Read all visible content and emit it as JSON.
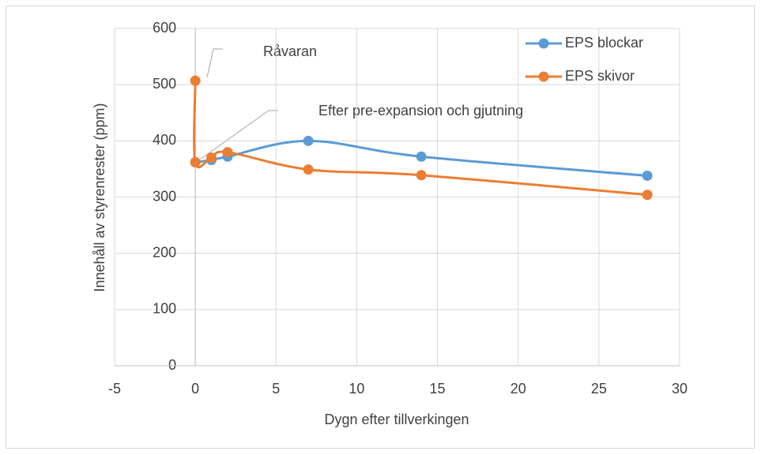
{
  "chart_data": {
    "type": "scatter",
    "y_label": "Innehåll av styrenrester (ppm)",
    "x_label": "Dygn efter tillverkingen",
    "annotations": [
      "Råvaran",
      "Efter pre-expansion  och gjutning"
    ],
    "xlim": [
      -5,
      30
    ],
    "xticks": [
      -5,
      0,
      5,
      10,
      15,
      20,
      25,
      30
    ],
    "ylim": [
      0,
      600
    ],
    "yticks": [
      0,
      100,
      200,
      300,
      400,
      500,
      600
    ],
    "grid": true,
    "legend": "upper right",
    "smooth": true,
    "series": [
      {
        "name": "EPS blockar",
        "color": "#5b9bd5",
        "x": [
          0,
          1,
          2,
          7,
          14,
          28
        ],
        "values": [
          362,
          366,
          372,
          400,
          372,
          338
        ]
      },
      {
        "name": "EPS skivor",
        "color": "#ed7d31",
        "x": [
          0,
          0,
          1,
          2,
          7,
          14,
          28
        ],
        "values": [
          507,
          362,
          370,
          380,
          349,
          339,
          304
        ]
      }
    ]
  }
}
